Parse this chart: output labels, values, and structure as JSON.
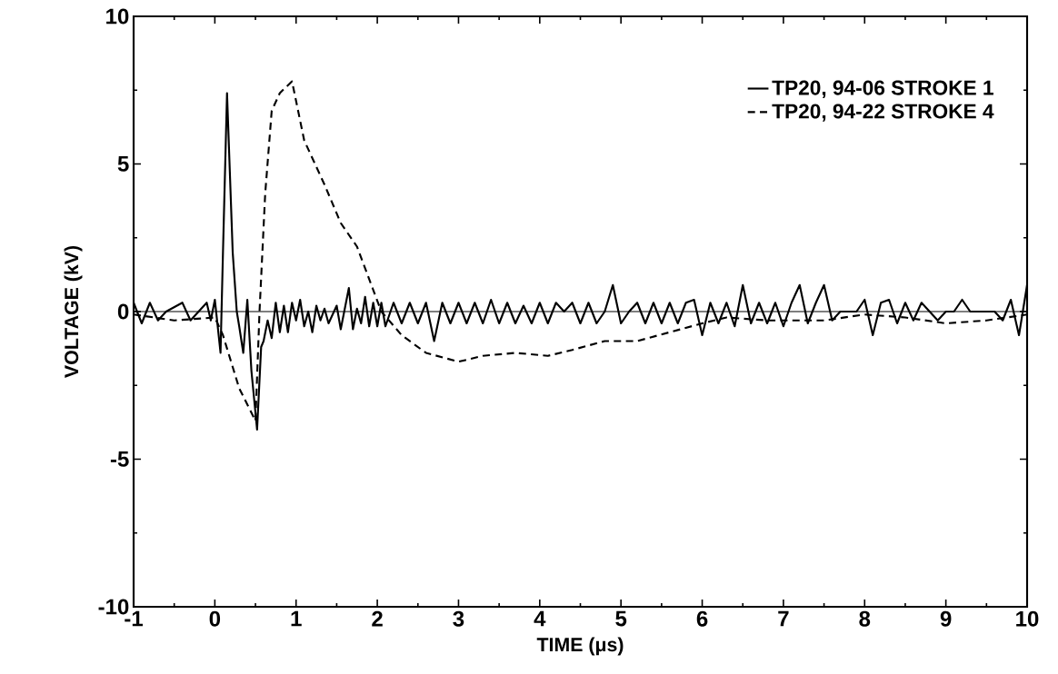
{
  "chart_data": {
    "type": "line",
    "xlabel": "TIME (μs)",
    "ylabel": "VOLTAGE (kV)",
    "xlim": [
      -1,
      10
    ],
    "ylim": [
      -10,
      10
    ],
    "xticks": [
      -1,
      0,
      1,
      2,
      3,
      4,
      5,
      6,
      7,
      8,
      9,
      10
    ],
    "yticks": [
      -10,
      -5,
      0,
      5,
      10
    ],
    "legend": "top right",
    "grid": false,
    "marker": "none",
    "ref_lines": [
      {
        "axis": "y",
        "value": 0,
        "color": "#000000",
        "line_style": "solid"
      }
    ],
    "series": [
      {
        "name": "TP20, 94-06 STROKE 1",
        "color": "#000000",
        "line_style": "solid",
        "x": [
          -1,
          -0.9,
          -0.8,
          -0.7,
          -0.6,
          -0.4,
          -0.3,
          -0.2,
          -0.1,
          -0.05,
          0.0,
          0.07,
          0.1,
          0.15,
          0.22,
          0.27,
          0.3,
          0.35,
          0.4,
          0.45,
          0.52,
          0.57,
          0.6,
          0.65,
          0.7,
          0.75,
          0.8,
          0.85,
          0.9,
          0.95,
          1.0,
          1.05,
          1.1,
          1.15,
          1.2,
          1.25,
          1.3,
          1.35,
          1.4,
          1.5,
          1.55,
          1.65,
          1.7,
          1.75,
          1.8,
          1.85,
          1.9,
          1.95,
          2.0,
          2.05,
          2.1,
          2.2,
          2.3,
          2.4,
          2.5,
          2.6,
          2.7,
          2.8,
          2.9,
          3.0,
          3.1,
          3.2,
          3.3,
          3.4,
          3.5,
          3.6,
          3.7,
          3.8,
          3.9,
          4.0,
          4.1,
          4.2,
          4.3,
          4.4,
          4.5,
          4.6,
          4.7,
          4.8,
          4.9,
          5.0,
          5.1,
          5.2,
          5.3,
          5.4,
          5.5,
          5.6,
          5.7,
          5.8,
          5.9,
          6.0,
          6.1,
          6.2,
          6.3,
          6.4,
          6.5,
          6.6,
          6.7,
          6.8,
          6.9,
          7.0,
          7.1,
          7.2,
          7.3,
          7.4,
          7.5,
          7.6,
          7.7,
          7.8,
          7.9,
          8.0,
          8.1,
          8.2,
          8.3,
          8.4,
          8.5,
          8.6,
          8.7,
          8.8,
          8.9,
          9.0,
          9.1,
          9.2,
          9.3,
          9.4,
          9.5,
          9.6,
          9.7,
          9.8,
          9.9,
          10
        ],
        "values": [
          0.3,
          -0.4,
          0.3,
          -0.3,
          0,
          0.3,
          -0.3,
          0,
          0.3,
          -0.3,
          0.4,
          -1.4,
          2,
          7.4,
          2,
          0,
          -0.5,
          -1.4,
          0.4,
          -2.0,
          -4.0,
          -1.2,
          -1.0,
          -0.3,
          -0.9,
          0.3,
          -0.7,
          0.2,
          -0.7,
          0.3,
          -0.3,
          0.4,
          -0.5,
          0,
          -0.7,
          0.2,
          -0.3,
          0.1,
          -0.4,
          0.2,
          -0.6,
          0.8,
          -0.6,
          0.1,
          -0.4,
          0.5,
          -0.5,
          0.3,
          -0.5,
          0.3,
          -0.5,
          0.3,
          -0.4,
          0.3,
          -0.4,
          0.3,
          -1.0,
          0.3,
          -0.4,
          0.3,
          -0.4,
          0.3,
          -0.4,
          0.4,
          -0.4,
          0.3,
          -0.4,
          0.2,
          -0.4,
          0.3,
          -0.4,
          0.3,
          0,
          0.3,
          -0.4,
          0.3,
          -0.4,
          0,
          0.9,
          -0.4,
          0,
          0.3,
          -0.4,
          0.3,
          -0.4,
          0.3,
          -0.4,
          0.3,
          0.4,
          -0.8,
          0.3,
          -0.4,
          0.3,
          -0.5,
          0.9,
          -0.4,
          0.3,
          -0.4,
          0.3,
          -0.5,
          0.3,
          0.9,
          -0.4,
          0.3,
          0.9,
          -0.3,
          0,
          0,
          0,
          0.4,
          -0.8,
          0.3,
          0.4,
          -0.4,
          0.3,
          -0.3,
          0.3,
          0,
          -0.3,
          0,
          0,
          0.4,
          0,
          0,
          0,
          0,
          -0.3,
          0.4,
          -0.8,
          0.9
        ]
      },
      {
        "name": "TP20, 94-22 STROKE 4",
        "color": "#000000",
        "line_style": "dashed",
        "x": [
          -1,
          -0.5,
          0,
          0.1,
          0.3,
          0.5,
          0.55,
          0.62,
          0.7,
          0.8,
          0.95,
          1.1,
          1.35,
          1.55,
          1.75,
          2.05,
          2.3,
          2.6,
          3.0,
          3.3,
          3.7,
          4.1,
          4.4,
          4.8,
          5.2,
          5.6,
          6.0,
          6.3,
          6.8,
          7.5,
          8.0,
          8.5,
          9.0,
          9.5,
          10
        ],
        "values": [
          -0.1,
          -0.3,
          -0.2,
          -0.8,
          -2.6,
          -3.7,
          0,
          4,
          6.8,
          7.4,
          7.8,
          5.8,
          4.3,
          3.0,
          2.2,
          0,
          -0.8,
          -1.4,
          -1.7,
          -1.5,
          -1.4,
          -1.5,
          -1.3,
          -1.0,
          -1.0,
          -0.7,
          -0.4,
          -0.2,
          -0.3,
          -0.3,
          -0.1,
          -0.2,
          -0.4,
          -0.3,
          -0.1
        ]
      }
    ]
  }
}
